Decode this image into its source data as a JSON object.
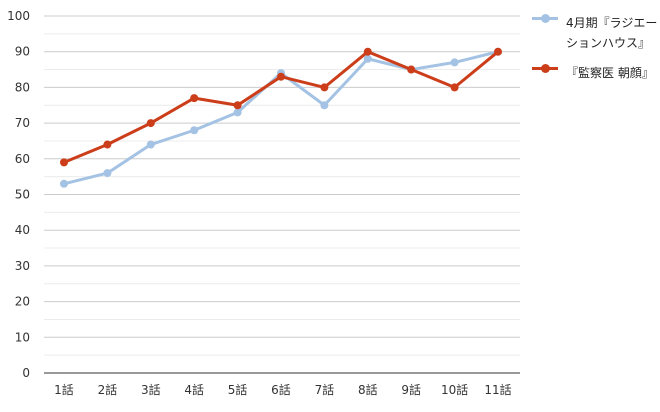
{
  "chart_data": {
    "type": "line",
    "categories": [
      "1話",
      "2話",
      "3話",
      "4話",
      "5話",
      "6話",
      "7話",
      "8話",
      "9話",
      "10話",
      "11話"
    ],
    "series": [
      {
        "name": "4月期『ラジエーションハウス』",
        "color": "#a4c2e3",
        "values": [
          53,
          56,
          64,
          68,
          73,
          84,
          75,
          88,
          85,
          87,
          90
        ]
      },
      {
        "name": "『監察医 朝顔』",
        "color": "#cc3d1a",
        "values": [
          59,
          64,
          70,
          77,
          75,
          83,
          80,
          90,
          85,
          80,
          90
        ]
      }
    ],
    "ylim": [
      0,
      100
    ],
    "yticks": [
      0,
      10,
      20,
      30,
      40,
      50,
      60,
      70,
      80,
      90,
      100
    ],
    "grid": true,
    "legend": "right"
  }
}
